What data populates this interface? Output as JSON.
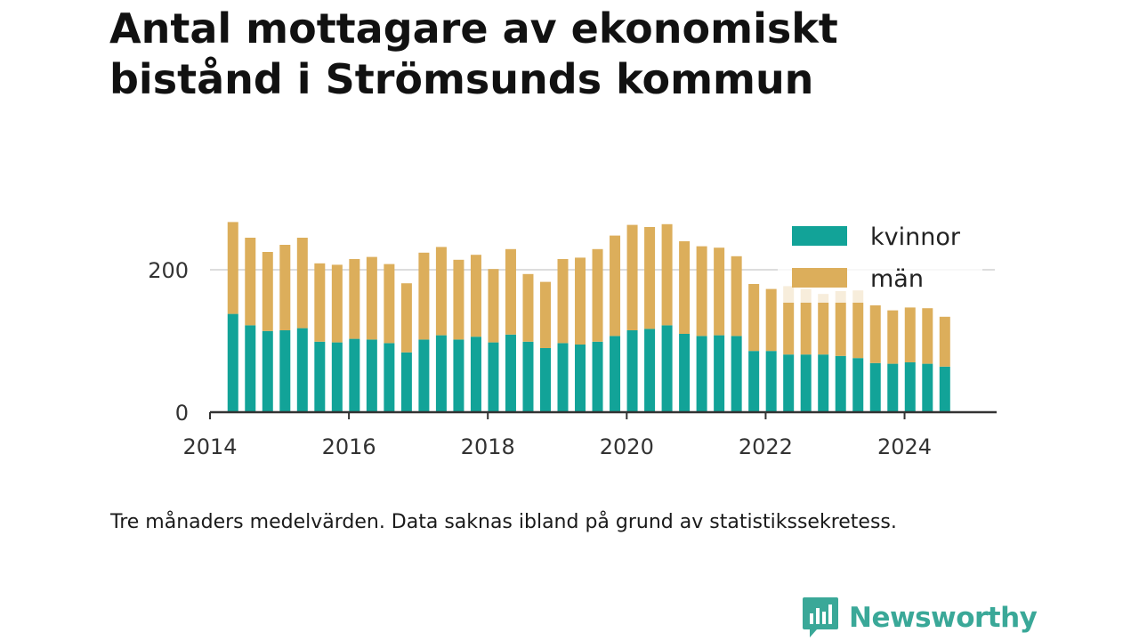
{
  "chart_data": {
    "type": "bar",
    "stacked": true,
    "title": "Antal mottagare av ekonomiskt bistånd i Strömsunds kommun",
    "note": "Tre månaders medelvärden. Data saknas ibland på grund av statistikssekretess.",
    "x_ticks": [
      "2014",
      "2016",
      "2018",
      "2020",
      "2022",
      "2024"
    ],
    "y_ticks": [
      0,
      200
    ],
    "ylim": [
      0,
      280
    ],
    "xlim": [
      2014.0,
      2025.3
    ],
    "grid": true,
    "legend_position": "top-right",
    "x": [
      2014.33,
      2014.58,
      2014.83,
      2015.08,
      2015.33,
      2015.58,
      2015.83,
      2016.08,
      2016.33,
      2016.58,
      2016.83,
      2017.08,
      2017.33,
      2017.58,
      2017.83,
      2018.08,
      2018.33,
      2018.58,
      2018.83,
      2019.08,
      2019.33,
      2019.58,
      2019.83,
      2020.08,
      2020.33,
      2020.58,
      2020.83,
      2021.08,
      2021.33,
      2021.58,
      2021.83,
      2022.08,
      2022.33,
      2022.58,
      2022.83,
      2023.08,
      2023.33,
      2023.58,
      2023.83,
      2024.08,
      2024.33,
      2024.58
    ],
    "series": [
      {
        "name": "kvinnor",
        "color": "#12a398",
        "values": [
          138,
          122,
          114,
          115,
          118,
          99,
          98,
          103,
          102,
          97,
          84,
          102,
          108,
          102,
          106,
          98,
          109,
          99,
          90,
          97,
          95,
          99,
          107,
          115,
          117,
          122,
          110,
          107,
          108,
          107,
          86,
          86,
          81,
          81,
          81,
          79,
          76,
          69,
          68,
          70,
          68,
          64
        ]
      },
      {
        "name": "män",
        "color": "#dcae5b",
        "values": [
          129,
          123,
          111,
          120,
          127,
          110,
          109,
          112,
          116,
          111,
          97,
          122,
          124,
          112,
          115,
          103,
          120,
          95,
          93,
          118,
          122,
          130,
          141,
          148,
          143,
          142,
          130,
          126,
          123,
          112,
          94,
          87,
          96,
          92,
          85,
          91,
          95,
          81,
          75,
          77,
          78,
          70
        ]
      }
    ]
  },
  "brand": {
    "name": "Newsworthy",
    "icon": "newsworthy-logo-icon",
    "color": "#3aa898"
  }
}
